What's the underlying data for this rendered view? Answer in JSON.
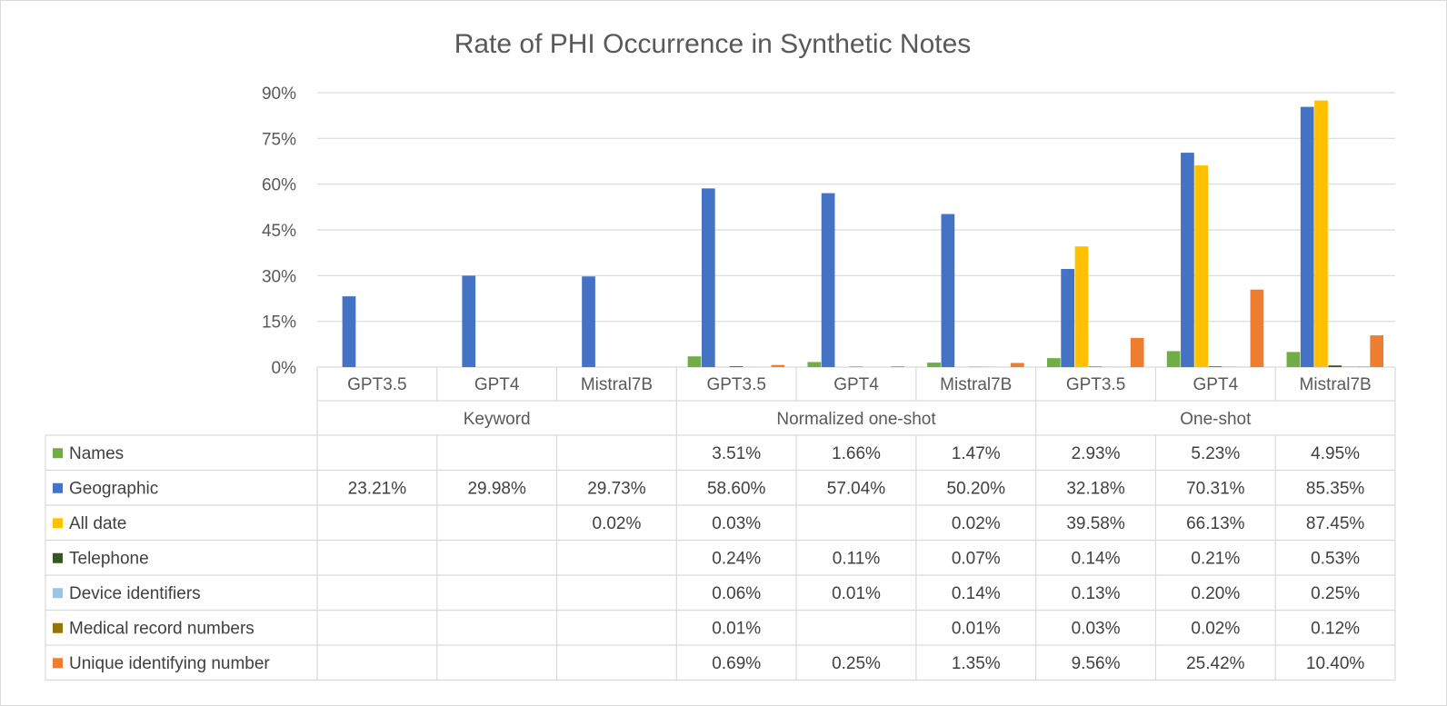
{
  "chart_data": {
    "type": "bar",
    "title": "Rate of PHI Occurrence in Synthetic Notes",
    "xlabel": "",
    "ylabel": "",
    "ylim": [
      0,
      90
    ],
    "yticks": [
      "0%",
      "15%",
      "30%",
      "45%",
      "60%",
      "75%",
      "90%"
    ],
    "grid": true,
    "legend": "data-table",
    "groups": [
      {
        "label": "Keyword",
        "categories": [
          "GPT3.5",
          "GPT4",
          "Mistral7B"
        ]
      },
      {
        "label": "Normalized one-shot",
        "categories": [
          "GPT3.5",
          "GPT4",
          "Mistral7B"
        ]
      },
      {
        "label": "One-shot",
        "categories": [
          "GPT3.5",
          "GPT4",
          "Mistral7B"
        ]
      }
    ],
    "categories": [
      "GPT3.5",
      "GPT4",
      "Mistral7B",
      "GPT3.5",
      "GPT4",
      "Mistral7B",
      "GPT3.5",
      "GPT4",
      "Mistral7B"
    ],
    "series": [
      {
        "name": "Names",
        "color": "#70AD47",
        "values": [
          null,
          null,
          null,
          3.51,
          1.66,
          1.47,
          2.93,
          5.23,
          4.95
        ],
        "labels": [
          "",
          "",
          "",
          "3.51%",
          "1.66%",
          "1.47%",
          "2.93%",
          "5.23%",
          "4.95%"
        ]
      },
      {
        "name": "Geographic",
        "color": "#4472C4",
        "values": [
          23.21,
          29.98,
          29.73,
          58.6,
          57.04,
          50.2,
          32.18,
          70.31,
          85.35
        ],
        "labels": [
          "23.21%",
          "29.98%",
          "29.73%",
          "58.60%",
          "57.04%",
          "50.20%",
          "32.18%",
          "70.31%",
          "85.35%"
        ]
      },
      {
        "name": "All date",
        "color": "#FFC000",
        "values": [
          null,
          null,
          0.02,
          0.03,
          null,
          0.02,
          39.58,
          66.13,
          87.45
        ],
        "labels": [
          "",
          "",
          "0.02%",
          "0.03%",
          "",
          "0.02%",
          "39.58%",
          "66.13%",
          "87.45%"
        ]
      },
      {
        "name": "Telephone",
        "color": "#375623",
        "values": [
          null,
          null,
          null,
          0.24,
          0.11,
          0.07,
          0.14,
          0.21,
          0.53
        ],
        "labels": [
          "",
          "",
          "",
          "0.24%",
          "0.11%",
          "0.07%",
          "0.14%",
          "0.21%",
          "0.53%"
        ]
      },
      {
        "name": "Device identifiers",
        "color": "#9DC3E6",
        "values": [
          null,
          null,
          null,
          0.06,
          0.01,
          0.14,
          0.13,
          0.2,
          0.25
        ],
        "labels": [
          "",
          "",
          "",
          "0.06%",
          "0.01%",
          "0.14%",
          "0.13%",
          "0.20%",
          "0.25%"
        ]
      },
      {
        "name": "Medical record numbers",
        "color": "#997300",
        "values": [
          null,
          null,
          null,
          0.01,
          null,
          0.01,
          0.03,
          0.02,
          0.12
        ],
        "labels": [
          "",
          "",
          "",
          "0.01%",
          "",
          "0.01%",
          "0.03%",
          "0.02%",
          "0.12%"
        ]
      },
      {
        "name": "Unique identifying number",
        "color": "#ED7D31",
        "values": [
          null,
          null,
          null,
          0.69,
          0.25,
          1.35,
          9.56,
          25.42,
          10.4
        ],
        "labels": [
          "",
          "",
          "",
          "0.69%",
          "0.25%",
          "1.35%",
          "9.56%",
          "25.42%",
          "10.40%"
        ]
      }
    ]
  }
}
